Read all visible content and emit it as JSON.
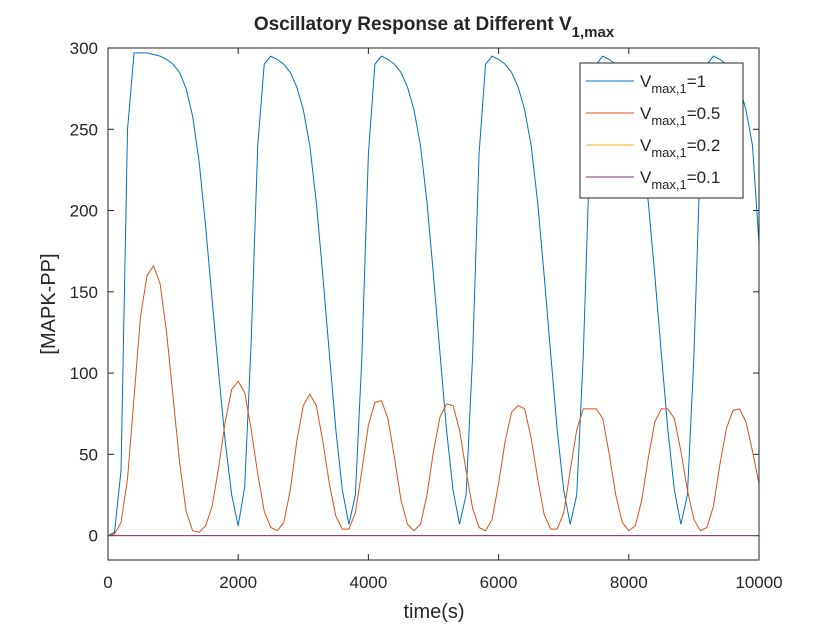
{
  "chart_data": {
    "type": "line",
    "title": {
      "text": "Oscillatory Response at Different V",
      "subscript": "1,max"
    },
    "x_label": "time(s)",
    "y_label": "[MAPK-PP]",
    "xlim": [
      0,
      10000
    ],
    "ylim": [
      -15,
      300
    ],
    "xticks": [
      0,
      2000,
      4000,
      6000,
      8000,
      10000
    ],
    "yticks": [
      0,
      50,
      100,
      150,
      200,
      250,
      300
    ],
    "legend_position": "upper-right",
    "x": [
      0,
      100,
      200,
      300,
      400,
      500,
      600,
      700,
      800,
      900,
      1000,
      1100,
      1200,
      1300,
      1400,
      1500,
      1600,
      1700,
      1800,
      1900,
      2000,
      2100,
      2200,
      2300,
      2400,
      2500,
      2600,
      2700,
      2800,
      2900,
      3000,
      3100,
      3200,
      3300,
      3400,
      3500,
      3600,
      3700,
      3800,
      3900,
      4000,
      4100,
      4200,
      4300,
      4400,
      4500,
      4600,
      4700,
      4800,
      4900,
      5000,
      5100,
      5200,
      5300,
      5400,
      5500,
      5600,
      5700,
      5800,
      5900,
      6000,
      6100,
      6200,
      6300,
      6400,
      6500,
      6600,
      6700,
      6800,
      6900,
      7000,
      7100,
      7200,
      7300,
      7400,
      7500,
      7600,
      7700,
      7800,
      7900,
      8000,
      8100,
      8200,
      8300,
      8400,
      8500,
      8600,
      8700,
      8800,
      8900,
      9000,
      9100,
      9200,
      9300,
      9400,
      9500,
      9600,
      9700,
      9800,
      9900,
      10000
    ],
    "series": [
      {
        "name": "V",
        "name_subscript": "max,1",
        "name_suffix": "=1",
        "color": "#0072bd",
        "values": [
          0,
          2,
          40,
          250,
          297,
          297,
          297,
          296,
          295,
          293,
          290,
          285,
          275,
          258,
          230,
          190,
          145,
          100,
          58,
          25,
          6,
          30,
          120,
          240,
          290,
          295,
          293,
          290,
          285,
          276,
          262,
          240,
          205,
          160,
          112,
          65,
          28,
          7,
          25,
          110,
          235,
          290,
          295,
          293,
          290,
          285,
          276,
          262,
          240,
          205,
          160,
          112,
          65,
          28,
          7,
          25,
          110,
          235,
          290,
          295,
          293,
          290,
          285,
          276,
          262,
          240,
          205,
          160,
          112,
          65,
          28,
          7,
          25,
          110,
          235,
          290,
          295,
          293,
          290,
          285,
          276,
          262,
          240,
          205,
          160,
          112,
          65,
          28,
          7,
          25,
          110,
          235,
          290,
          295,
          293,
          290,
          285,
          276,
          262,
          240,
          180
        ]
      },
      {
        "name": "V",
        "name_subscript": "max,1",
        "name_suffix": "=0.5",
        "color": "#d95319",
        "values": [
          0,
          1,
          8,
          35,
          85,
          135,
          160,
          166,
          155,
          125,
          85,
          45,
          15,
          3,
          2,
          6,
          18,
          42,
          70,
          90,
          95,
          88,
          65,
          38,
          15,
          5,
          3,
          8,
          28,
          58,
          80,
          87,
          80,
          58,
          32,
          12,
          4,
          4,
          14,
          40,
          68,
          82,
          83,
          72,
          48,
          22,
          7,
          3,
          7,
          25,
          52,
          73,
          81,
          80,
          65,
          40,
          17,
          5,
          3,
          10,
          32,
          58,
          76,
          80,
          78,
          60,
          35,
          13,
          4,
          4,
          14,
          40,
          65,
          78,
          78,
          78,
          72,
          50,
          25,
          8,
          3,
          6,
          22,
          48,
          70,
          78,
          78,
          72,
          52,
          28,
          10,
          3,
          5,
          18,
          44,
          66,
          77,
          78,
          70,
          52,
          32
        ]
      },
      {
        "name": "V",
        "name_subscript": "max,1",
        "name_suffix": "=0.2",
        "color": "#edb120",
        "values": [
          0,
          0,
          0,
          0,
          0,
          0,
          0,
          0,
          0,
          0,
          0,
          0,
          0,
          0,
          0,
          0,
          0,
          0,
          0,
          0,
          0,
          0,
          0,
          0,
          0,
          0,
          0,
          0,
          0,
          0,
          0,
          0,
          0,
          0,
          0,
          0,
          0,
          0,
          0,
          0,
          0,
          0,
          0,
          0,
          0,
          0,
          0,
          0,
          0,
          0,
          0,
          0,
          0,
          0,
          0,
          0,
          0,
          0,
          0,
          0,
          0,
          0,
          0,
          0,
          0,
          0,
          0,
          0,
          0,
          0,
          0,
          0,
          0,
          0,
          0,
          0,
          0,
          0,
          0,
          0,
          0,
          0,
          0,
          0,
          0,
          0,
          0,
          0,
          0,
          0,
          0,
          0,
          0,
          0,
          0,
          0,
          0,
          0,
          0,
          0,
          0
        ]
      },
      {
        "name": "V",
        "name_subscript": "max,1",
        "name_suffix": "=0.1",
        "color": "#7e2f8e",
        "values": [
          0,
          0,
          0,
          0,
          0,
          0,
          0,
          0,
          0,
          0,
          0,
          0,
          0,
          0,
          0,
          0,
          0,
          0,
          0,
          0,
          0,
          0,
          0,
          0,
          0,
          0,
          0,
          0,
          0,
          0,
          0,
          0,
          0,
          0,
          0,
          0,
          0,
          0,
          0,
          0,
          0,
          0,
          0,
          0,
          0,
          0,
          0,
          0,
          0,
          0,
          0,
          0,
          0,
          0,
          0,
          0,
          0,
          0,
          0,
          0,
          0,
          0,
          0,
          0,
          0,
          0,
          0,
          0,
          0,
          0,
          0,
          0,
          0,
          0,
          0,
          0,
          0,
          0,
          0,
          0,
          0,
          0,
          0,
          0,
          0,
          0,
          0,
          0,
          0,
          0,
          0,
          0,
          0,
          0,
          0,
          0,
          0,
          0,
          0,
          0,
          0
        ]
      }
    ]
  }
}
